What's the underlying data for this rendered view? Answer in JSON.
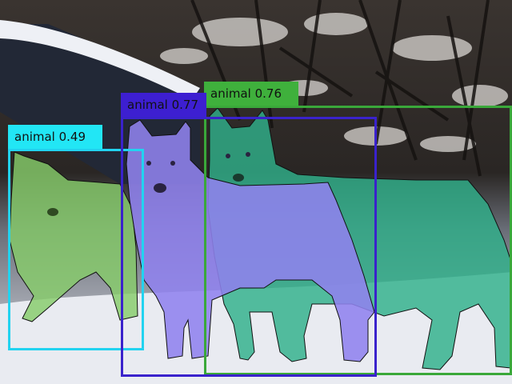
{
  "detections": [
    {
      "label": "animal",
      "score": "0.49",
      "text": "animal 0.49",
      "box_color": "#22d3f0",
      "label_color": "#22e6f5",
      "mask_color": "#7fd26a"
    },
    {
      "label": "animal",
      "score": "0.77",
      "text": "animal 0.77",
      "box_color": "#3a22cc",
      "label_color": "#3d1fd1",
      "mask_color": "#8a78f0"
    },
    {
      "label": "animal",
      "score": "0.76",
      "text": "animal 0.76",
      "box_color": "#3aa83a",
      "label_color": "#3fb03c",
      "mask_color": "#2fb87f"
    }
  ]
}
